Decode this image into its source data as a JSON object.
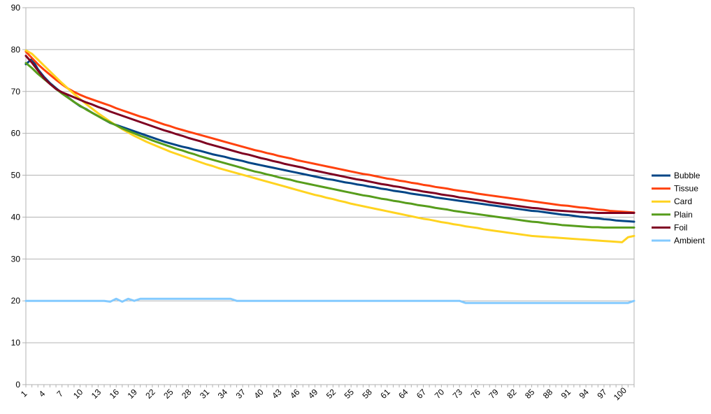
{
  "chart_data": {
    "type": "line",
    "title": "",
    "xlabel": "",
    "ylabel": "",
    "ylim": [
      0,
      90
    ],
    "yticks": [
      0,
      10,
      20,
      30,
      40,
      50,
      60,
      70,
      80,
      90
    ],
    "x": [
      1,
      2,
      3,
      4,
      5,
      6,
      7,
      8,
      9,
      10,
      11,
      12,
      13,
      14,
      15,
      16,
      17,
      18,
      19,
      20,
      21,
      22,
      23,
      24,
      25,
      26,
      27,
      28,
      29,
      30,
      31,
      32,
      33,
      34,
      35,
      36,
      37,
      38,
      39,
      40,
      41,
      42,
      43,
      44,
      45,
      46,
      47,
      48,
      49,
      50,
      51,
      52,
      53,
      54,
      55,
      56,
      57,
      58,
      59,
      60,
      61,
      62,
      63,
      64,
      65,
      66,
      67,
      68,
      69,
      70,
      71,
      72,
      73,
      74,
      75,
      76,
      77,
      78,
      79,
      80,
      81,
      82,
      83,
      84,
      85,
      86,
      87,
      88,
      89,
      90,
      91,
      92,
      93,
      94,
      95,
      96,
      97,
      98,
      99,
      100,
      101,
      102
    ],
    "xtick_labels": [
      "1",
      "4",
      "7",
      "10",
      "13",
      "16",
      "19",
      "22",
      "25",
      "28",
      "31",
      "34",
      "37",
      "40",
      "43",
      "46",
      "49",
      "52",
      "55",
      "58",
      "61",
      "64",
      "67",
      "70",
      "73",
      "76",
      "79",
      "82",
      "85",
      "88",
      "91",
      "94",
      "97",
      "100"
    ],
    "grid": true,
    "legend_position": "right",
    "series": [
      {
        "name": "Bubble",
        "color": "#004586",
        "values": [
          76.5,
          77.8,
          75.3,
          73.5,
          72.0,
          70.8,
          69.6,
          68.6,
          67.5,
          66.5,
          65.8,
          64.9,
          64.1,
          63.3,
          62.5,
          62.0,
          61.5,
          61.0,
          60.5,
          60.0,
          59.5,
          59.0,
          58.5,
          58.0,
          57.6,
          57.2,
          56.8,
          56.5,
          56.1,
          55.8,
          55.4,
          55.0,
          54.7,
          54.4,
          54.0,
          53.7,
          53.4,
          53.0,
          52.7,
          52.4,
          52.1,
          51.8,
          51.5,
          51.2,
          50.9,
          50.6,
          50.3,
          50.0,
          49.7,
          49.4,
          49.1,
          48.9,
          48.6,
          48.3,
          48.1,
          47.8,
          47.6,
          47.3,
          47.1,
          46.8,
          46.6,
          46.3,
          46.1,
          45.9,
          45.6,
          45.4,
          45.2,
          45.0,
          44.7,
          44.5,
          44.3,
          44.1,
          43.9,
          43.7,
          43.5,
          43.3,
          43.1,
          42.9,
          42.7,
          42.5,
          42.3,
          42.1,
          41.9,
          41.7,
          41.5,
          41.4,
          41.2,
          41.0,
          40.8,
          40.6,
          40.5,
          40.3,
          40.1,
          40.0,
          39.8,
          39.7,
          39.5,
          39.4,
          39.2,
          39.1,
          39.0,
          38.9
        ]
      },
      {
        "name": "Tissue",
        "color": "#ff420e",
        "values": [
          79.5,
          78.0,
          76.5,
          75.2,
          74.0,
          72.8,
          71.7,
          70.7,
          69.9,
          69.2,
          68.6,
          68.1,
          67.6,
          67.1,
          66.6,
          66.0,
          65.5,
          65.0,
          64.5,
          64.0,
          63.6,
          63.1,
          62.6,
          62.1,
          61.7,
          61.2,
          60.8,
          60.4,
          60.0,
          59.6,
          59.2,
          58.8,
          58.4,
          58.0,
          57.6,
          57.2,
          56.8,
          56.4,
          56.0,
          55.7,
          55.3,
          55.0,
          54.6,
          54.3,
          54.0,
          53.6,
          53.3,
          53.0,
          52.7,
          52.4,
          52.1,
          51.8,
          51.5,
          51.2,
          50.9,
          50.6,
          50.3,
          50.1,
          49.8,
          49.5,
          49.2,
          49.0,
          48.7,
          48.5,
          48.2,
          48.0,
          47.7,
          47.5,
          47.2,
          47.0,
          46.8,
          46.5,
          46.3,
          46.1,
          45.9,
          45.6,
          45.4,
          45.2,
          45.0,
          44.8,
          44.6,
          44.4,
          44.2,
          44.0,
          43.8,
          43.6,
          43.4,
          43.2,
          43.0,
          42.8,
          42.7,
          42.5,
          42.3,
          42.2,
          42.0,
          41.8,
          41.7,
          41.5,
          41.4,
          41.3,
          41.2,
          41.1
        ]
      },
      {
        "name": "Card",
        "color": "#ffd320",
        "values": [
          79.8,
          79.0,
          77.6,
          76.2,
          74.8,
          73.4,
          72.0,
          70.7,
          69.4,
          68.2,
          67.0,
          65.9,
          64.8,
          63.8,
          62.8,
          61.9,
          61.0,
          60.2,
          59.4,
          58.7,
          58.0,
          57.4,
          56.8,
          56.2,
          55.6,
          55.1,
          54.6,
          54.1,
          53.6,
          53.1,
          52.6,
          52.2,
          51.7,
          51.3,
          50.9,
          50.5,
          50.1,
          49.7,
          49.3,
          48.9,
          48.5,
          48.1,
          47.7,
          47.3,
          46.9,
          46.5,
          46.1,
          45.7,
          45.3,
          45.0,
          44.6,
          44.3,
          43.9,
          43.6,
          43.2,
          42.9,
          42.6,
          42.3,
          42.0,
          41.7,
          41.4,
          41.1,
          40.8,
          40.5,
          40.2,
          39.9,
          39.6,
          39.4,
          39.1,
          38.8,
          38.6,
          38.3,
          38.1,
          37.8,
          37.6,
          37.4,
          37.1,
          36.9,
          36.7,
          36.5,
          36.3,
          36.1,
          35.9,
          35.7,
          35.5,
          35.4,
          35.3,
          35.2,
          35.1,
          35.0,
          34.9,
          34.8,
          34.7,
          34.6,
          34.5,
          34.4,
          34.3,
          34.2,
          34.1,
          34.0,
          35.2,
          35.5
        ]
      },
      {
        "name": "Plain",
        "color": "#579d1c",
        "values": [
          76.8,
          75.6,
          74.2,
          73.0,
          71.8,
          70.6,
          69.5,
          68.5,
          67.5,
          66.6,
          65.7,
          64.9,
          64.1,
          63.3,
          62.6,
          61.9,
          61.2,
          60.6,
          60.0,
          59.4,
          58.9,
          58.3,
          57.8,
          57.3,
          56.8,
          56.3,
          55.9,
          55.4,
          55.0,
          54.5,
          54.1,
          53.7,
          53.3,
          52.9,
          52.5,
          52.1,
          51.7,
          51.3,
          50.9,
          50.6,
          50.2,
          49.9,
          49.5,
          49.2,
          48.9,
          48.5,
          48.2,
          47.9,
          47.6,
          47.3,
          47.0,
          46.7,
          46.4,
          46.1,
          45.8,
          45.5,
          45.2,
          45.0,
          44.7,
          44.4,
          44.2,
          43.9,
          43.7,
          43.4,
          43.2,
          42.9,
          42.7,
          42.5,
          42.2,
          42.0,
          41.8,
          41.5,
          41.3,
          41.1,
          40.9,
          40.7,
          40.5,
          40.3,
          40.1,
          39.9,
          39.7,
          39.5,
          39.3,
          39.1,
          38.9,
          38.8,
          38.6,
          38.4,
          38.3,
          38.1,
          38.0,
          37.9,
          37.8,
          37.7,
          37.6,
          37.6,
          37.5,
          37.5,
          37.5,
          37.5,
          37.5,
          37.5
        ]
      },
      {
        "name": "Foil",
        "color": "#7e0021",
        "values": [
          78.5,
          76.9,
          75.0,
          73.2,
          71.8,
          70.6,
          69.8,
          69.2,
          68.6,
          68.0,
          67.4,
          66.9,
          66.3,
          65.8,
          65.2,
          64.7,
          64.2,
          63.7,
          63.2,
          62.7,
          62.2,
          61.7,
          61.2,
          60.7,
          60.3,
          59.8,
          59.4,
          58.9,
          58.5,
          58.1,
          57.6,
          57.2,
          56.8,
          56.4,
          56.0,
          55.6,
          55.2,
          54.9,
          54.5,
          54.1,
          53.8,
          53.4,
          53.1,
          52.7,
          52.4,
          52.1,
          51.8,
          51.4,
          51.1,
          50.8,
          50.5,
          50.2,
          49.9,
          49.6,
          49.3,
          49.0,
          48.8,
          48.5,
          48.2,
          47.9,
          47.7,
          47.4,
          47.2,
          46.9,
          46.6,
          46.4,
          46.1,
          45.9,
          45.7,
          45.4,
          45.2,
          45.0,
          44.7,
          44.5,
          44.3,
          44.1,
          43.9,
          43.6,
          43.4,
          43.2,
          43.0,
          42.8,
          42.6,
          42.4,
          42.2,
          42.1,
          41.9,
          41.7,
          41.6,
          41.5,
          41.4,
          41.3,
          41.2,
          41.1,
          41.1,
          41.0,
          41.0,
          41.0,
          41.0,
          41.0,
          41.0,
          41.0
        ]
      },
      {
        "name": "Ambient",
        "color": "#83caff",
        "values": [
          20.0,
          20.0,
          20.0,
          20.0,
          20.0,
          20.0,
          20.0,
          20.0,
          20.0,
          20.0,
          20.0,
          20.0,
          20.0,
          20.0,
          19.8,
          20.5,
          19.8,
          20.5,
          20.0,
          20.5,
          20.5,
          20.5,
          20.5,
          20.5,
          20.5,
          20.5,
          20.5,
          20.5,
          20.5,
          20.5,
          20.5,
          20.5,
          20.5,
          20.5,
          20.5,
          20.0,
          20.0,
          20.0,
          20.0,
          20.0,
          20.0,
          20.0,
          20.0,
          20.0,
          20.0,
          20.0,
          20.0,
          20.0,
          20.0,
          20.0,
          20.0,
          20.0,
          20.0,
          20.0,
          20.0,
          20.0,
          20.0,
          20.0,
          20.0,
          20.0,
          20.0,
          20.0,
          20.0,
          20.0,
          20.0,
          20.0,
          20.0,
          20.0,
          20.0,
          20.0,
          20.0,
          20.0,
          20.0,
          19.5,
          19.5,
          19.5,
          19.5,
          19.5,
          19.5,
          19.5,
          19.5,
          19.5,
          19.5,
          19.5,
          19.5,
          19.5,
          19.5,
          19.5,
          19.5,
          19.5,
          19.5,
          19.5,
          19.5,
          19.5,
          19.5,
          19.5,
          19.5,
          19.5,
          19.5,
          19.5,
          19.5,
          20.0
        ]
      }
    ]
  }
}
